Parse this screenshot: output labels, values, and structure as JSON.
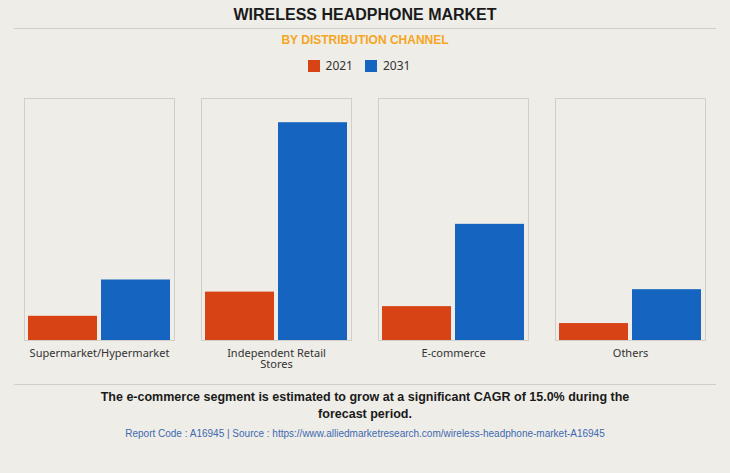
{
  "chart_data": {
    "type": "bar",
    "title": "WIRELESS HEADPHONE MARKET",
    "subtitle": "BY DISTRIBUTION CHANNEL",
    "categories": [
      "Supermarket/Hypermarket",
      "Independent Retail\nStores",
      "E-commerce",
      "Others"
    ],
    "series": [
      {
        "name": "2021",
        "color": "#d84315",
        "values": [
          1.0,
          2.0,
          1.4,
          0.7
        ]
      },
      {
        "name": "2031",
        "color": "#1565c0",
        "values": [
          2.5,
          9.0,
          4.8,
          2.1
        ]
      }
    ],
    "ylim": [
      0,
      10
    ],
    "yticks": [],
    "grid": false,
    "tick_labels": "x",
    "legend": "top",
    "annotations": [
      "The e-commerce segment is estimated to grow at a significant CAGR of 15.0% during the",
      "forecast period."
    ],
    "footer": "Report Code : A16945  |  Source : https://www.alliedmarketresearch.com/wireless-headphone-market-A16945"
  }
}
